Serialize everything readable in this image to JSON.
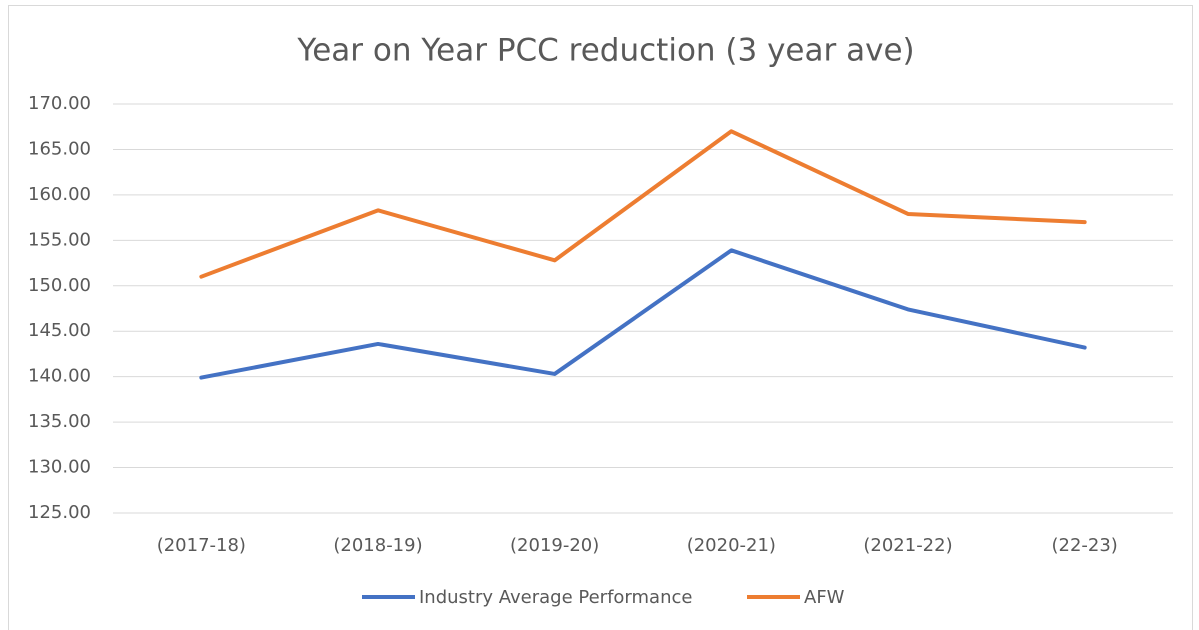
{
  "chart_data": {
    "type": "line",
    "title": "Year on Year PCC reduction (3 year ave)",
    "categories": [
      "(2017-18)",
      "(2018-19)",
      "(2019-20)",
      "(2020-21)",
      "(2021-22)",
      "(22-23)"
    ],
    "series": [
      {
        "name": "Industry Average Performance",
        "color": "#4472c4",
        "values": [
          139.9,
          143.6,
          140.3,
          153.9,
          147.4,
          143.2
        ]
      },
      {
        "name": "AFW",
        "color": "#ed7d31",
        "values": [
          151.0,
          158.3,
          152.8,
          167.0,
          157.9,
          157.0
        ]
      }
    ],
    "ylim": [
      125,
      170
    ],
    "yticks": [
      {
        "value": 125,
        "label": "125.00"
      },
      {
        "value": 130,
        "label": "130.00"
      },
      {
        "value": 135,
        "label": "135.00"
      },
      {
        "value": 140,
        "label": "140.00"
      },
      {
        "value": 145,
        "label": "145.00"
      },
      {
        "value": 150,
        "label": "150.00"
      },
      {
        "value": 155,
        "label": "155.00"
      },
      {
        "value": 160,
        "label": "160.00"
      },
      {
        "value": 165,
        "label": "165.00"
      },
      {
        "value": 170,
        "label": "170.00"
      }
    ],
    "grid": true,
    "legend": "bottom"
  }
}
